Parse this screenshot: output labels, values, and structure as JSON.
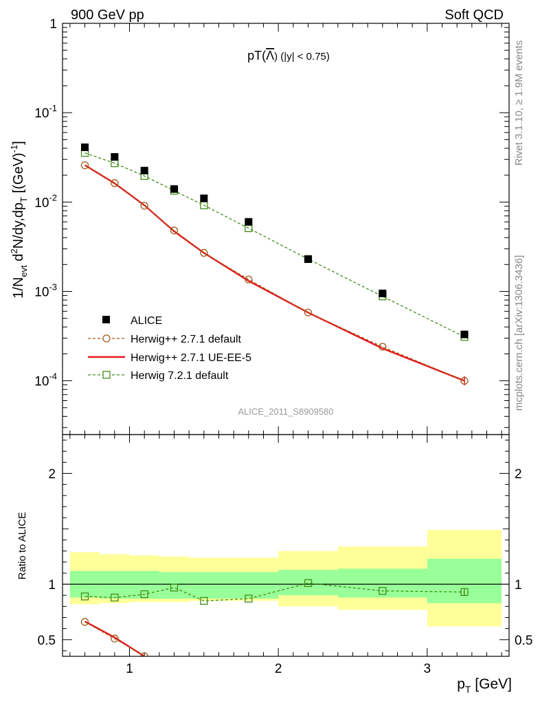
{
  "header": {
    "left": "900 GeV pp",
    "right": "Soft QCD"
  },
  "side_labels": {
    "rivet": "Rivet 3.1.10, ≥ 1.9M events",
    "mcplots": "mcplots.cern.ch [arXiv:1306.3436]"
  },
  "chart_data": {
    "type": "scatter",
    "title": {
      "main": "pT(",
      "particle": "Λ",
      "tail": ") (|y| < 0.75)"
    },
    "analysis_id": "ALICE_2011_S8909580",
    "xlabel": {
      "main": "p",
      "sub": "T",
      "unit": " [GeV]"
    },
    "ylabel": {
      "p1": "1/N",
      "s1": "evt",
      "p2": " d",
      "sup2": "2",
      "p3": "N/dy,dp",
      "s3": "T",
      "p4": " [(GeV)",
      "sup4": "-1",
      "p5": "]"
    },
    "ratio_ylabel": "Ratio to ALICE",
    "xlim": [
      0.55,
      3.55
    ],
    "ylim_main": [
      2.5e-05,
      1.0
    ],
    "ylim_ratio": [
      0.35,
      2.35
    ],
    "y_log": true,
    "x_ticks": [
      "1",
      "2",
      "3"
    ],
    "y_ticks_main": [
      {
        "base": "1",
        "exp": ""
      },
      {
        "base": "10",
        "exp": "-1"
      },
      {
        "base": "10",
        "exp": "-2"
      },
      {
        "base": "10",
        "exp": "-3"
      },
      {
        "base": "10",
        "exp": "-4"
      }
    ],
    "y_ticks_ratio": [
      "0.5",
      "1",
      "2"
    ],
    "legend": [
      {
        "label": "ALICE"
      },
      {
        "label": "Herwig++ 2.7.1 default"
      },
      {
        "label": "Herwig++ 2.7.1 UE-EE-5"
      },
      {
        "label": "Herwig 7.2.1 default"
      }
    ],
    "data": {
      "name": "ALICE",
      "x": [
        0.7,
        0.9,
        1.1,
        1.3,
        1.5,
        1.8,
        2.2,
        2.7,
        3.25
      ],
      "y": [
        0.041,
        0.032,
        0.0225,
        0.014,
        0.011,
        0.006,
        0.0023,
        0.00095,
        0.00033
      ],
      "bins": [
        [
          0.6,
          0.8
        ],
        [
          0.8,
          1.0
        ],
        [
          1.0,
          1.2
        ],
        [
          1.2,
          1.4
        ],
        [
          1.4,
          1.6
        ],
        [
          1.6,
          2.0
        ],
        [
          2.0,
          2.4
        ],
        [
          2.4,
          3.0
        ],
        [
          3.0,
          3.5
        ]
      ],
      "ratio_band_stat": [
        [
          0.88,
          1.12
        ],
        [
          0.87,
          1.12
        ],
        [
          0.87,
          1.12
        ],
        [
          0.87,
          1.11
        ],
        [
          0.87,
          1.11
        ],
        [
          0.87,
          1.11
        ],
        [
          0.9,
          1.13
        ],
        [
          0.88,
          1.14
        ],
        [
          0.83,
          1.23
        ]
      ],
      "ratio_band_total": [
        [
          0.82,
          1.29
        ],
        [
          0.83,
          1.27
        ],
        [
          0.84,
          1.26
        ],
        [
          0.84,
          1.25
        ],
        [
          0.85,
          1.24
        ],
        [
          0.85,
          1.24
        ],
        [
          0.8,
          1.3
        ],
        [
          0.77,
          1.34
        ],
        [
          0.62,
          1.49
        ]
      ]
    },
    "series": [
      {
        "name": "Herwig++ 2.7.1 default",
        "color": "#a0581a",
        "x": [
          0.7,
          0.9,
          1.1,
          1.3,
          1.5,
          1.8,
          2.2,
          2.7,
          3.25
        ],
        "y": [
          0.0258,
          0.0163,
          0.0091,
          0.0048,
          0.0027,
          0.00136,
          0.00058,
          0.00024,
          0.0001
        ],
        "ratio": [
          0.66,
          0.51,
          0.35
        ]
      },
      {
        "name": "Herwig++ 2.7.1 UE-EE-5",
        "color": "#e8161b",
        "x": [
          0.7,
          0.9,
          1.1,
          1.3,
          1.5,
          1.8,
          2.2,
          2.7,
          3.25
        ],
        "y": [
          0.0259,
          0.0162,
          0.0092,
          0.0047,
          0.0027,
          0.00131,
          0.00058,
          0.00023,
          0.0001
        ],
        "ratio": [
          0.665,
          0.52,
          0.35
        ]
      },
      {
        "name": "Herwig 7.2.1 default",
        "color": "#3f8c16",
        "x": [
          0.7,
          0.9,
          1.1,
          1.3,
          1.5,
          1.8,
          2.2,
          2.7,
          3.25
        ],
        "y": [
          0.0355,
          0.0272,
          0.0196,
          0.0134,
          0.0092,
          0.0051,
          0.0023,
          0.00088,
          0.00031
        ],
        "ratio": [
          0.89,
          0.88,
          0.91,
          0.97,
          0.85,
          0.87,
          1.01,
          0.94,
          0.93
        ]
      }
    ],
    "colors": {
      "band_stat": "#99ff99",
      "band_total": "#ffff99",
      "data": "#000000"
    }
  }
}
